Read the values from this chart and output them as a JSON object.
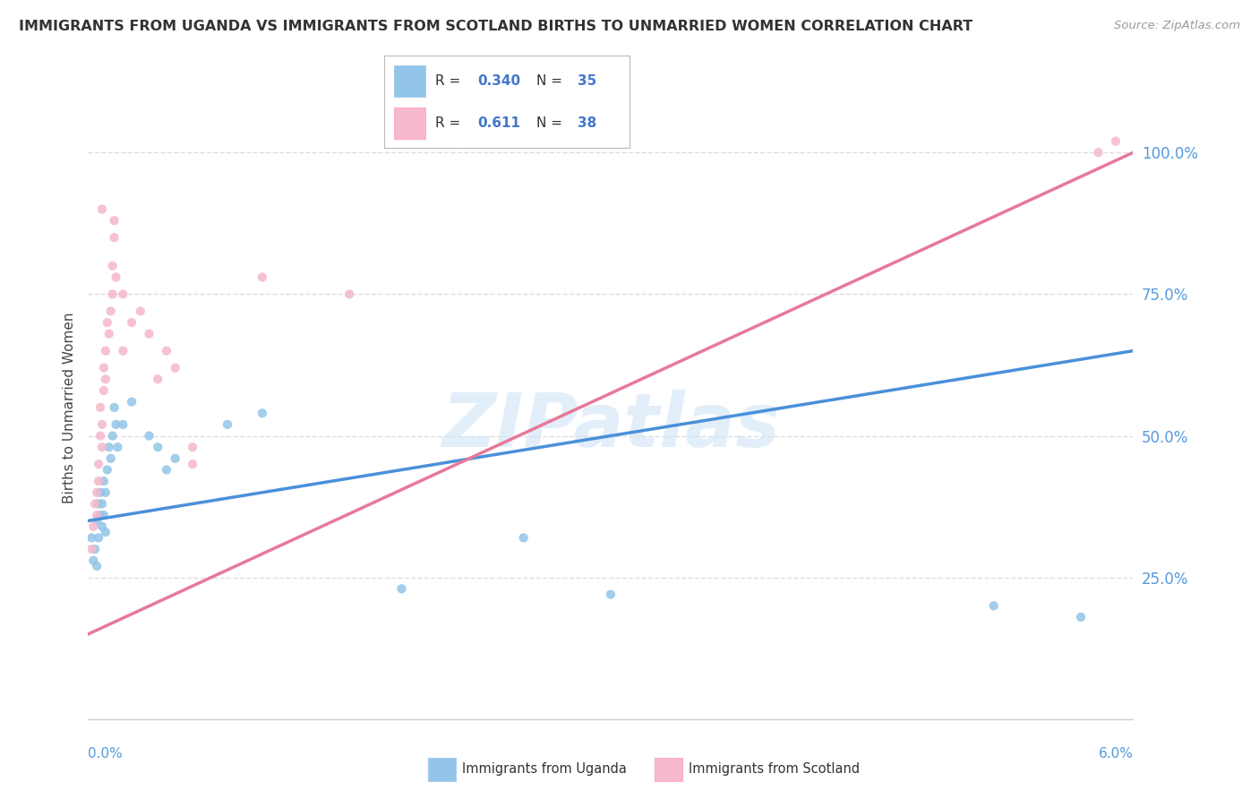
{
  "title": "IMMIGRANTS FROM UGANDA VS IMMIGRANTS FROM SCOTLAND BIRTHS TO UNMARRIED WOMEN CORRELATION CHART",
  "source": "Source: ZipAtlas.com",
  "ylabel": "Births to Unmarried Women",
  "watermark": "ZIPatlas",
  "legend1_r": "0.340",
  "legend1_n": "35",
  "legend2_r": "0.611",
  "legend2_n": "38",
  "uganda_color": "#92C5E8",
  "scotland_color": "#F5B8CC",
  "uganda_line_color": "#4A90D9",
  "scotland_line_color": "#E8789A",
  "uganda_scatter": [
    [
      0.02,
      32
    ],
    [
      0.03,
      28
    ],
    [
      0.04,
      30
    ],
    [
      0.05,
      35
    ],
    [
      0.05,
      27
    ],
    [
      0.06,
      38
    ],
    [
      0.06,
      32
    ],
    [
      0.07,
      36
    ],
    [
      0.07,
      40
    ],
    [
      0.08,
      34
    ],
    [
      0.08,
      38
    ],
    [
      0.09,
      42
    ],
    [
      0.09,
      36
    ],
    [
      0.1,
      40
    ],
    [
      0.1,
      33
    ],
    [
      0.11,
      44
    ],
    [
      0.12,
      48
    ],
    [
      0.13,
      46
    ],
    [
      0.14,
      50
    ],
    [
      0.15,
      55
    ],
    [
      0.16,
      52
    ],
    [
      0.17,
      48
    ],
    [
      0.2,
      52
    ],
    [
      0.25,
      56
    ],
    [
      0.35,
      50
    ],
    [
      0.4,
      48
    ],
    [
      0.45,
      44
    ],
    [
      0.5,
      46
    ],
    [
      0.8,
      52
    ],
    [
      1.0,
      54
    ],
    [
      1.8,
      23
    ],
    [
      2.5,
      32
    ],
    [
      3.0,
      22
    ],
    [
      5.2,
      20
    ],
    [
      5.7,
      18
    ]
  ],
  "scotland_scatter": [
    [
      0.02,
      30
    ],
    [
      0.03,
      34
    ],
    [
      0.04,
      38
    ],
    [
      0.05,
      36
    ],
    [
      0.05,
      40
    ],
    [
      0.06,
      42
    ],
    [
      0.06,
      45
    ],
    [
      0.07,
      50
    ],
    [
      0.07,
      55
    ],
    [
      0.08,
      48
    ],
    [
      0.08,
      52
    ],
    [
      0.09,
      58
    ],
    [
      0.09,
      62
    ],
    [
      0.1,
      65
    ],
    [
      0.1,
      60
    ],
    [
      0.11,
      70
    ],
    [
      0.12,
      68
    ],
    [
      0.13,
      72
    ],
    [
      0.14,
      80
    ],
    [
      0.14,
      75
    ],
    [
      0.15,
      85
    ],
    [
      0.16,
      78
    ],
    [
      0.2,
      65
    ],
    [
      0.25,
      70
    ],
    [
      0.3,
      72
    ],
    [
      0.35,
      68
    ],
    [
      0.4,
      60
    ],
    [
      0.45,
      65
    ],
    [
      0.5,
      62
    ],
    [
      0.6,
      45
    ],
    [
      0.6,
      48
    ],
    [
      1.0,
      78
    ],
    [
      1.5,
      75
    ],
    [
      5.8,
      100
    ],
    [
      5.9,
      102
    ],
    [
      0.08,
      90
    ],
    [
      0.15,
      88
    ],
    [
      0.2,
      75
    ]
  ],
  "xlim": [
    0.0,
    6.0
  ],
  "ylim": [
    0.0,
    110.0
  ],
  "yticks": [
    0,
    25,
    50,
    75,
    100
  ],
  "ytick_labels": [
    "",
    "25.0%",
    "50.0%",
    "75.0%",
    "100.0%"
  ],
  "background_color": "#FFFFFF",
  "grid_color": "#DDDDDD",
  "trend_line_xlim": [
    0.0,
    6.0
  ]
}
